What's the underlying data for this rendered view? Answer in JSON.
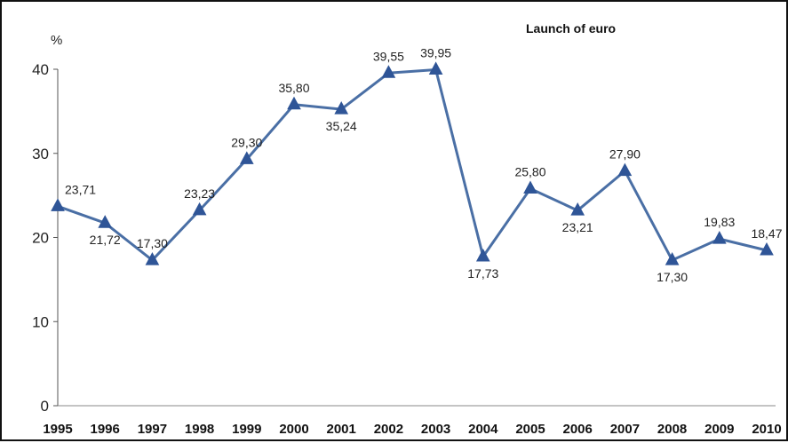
{
  "chart_data": {
    "type": "line",
    "title": "",
    "annotation": "Launch of euro",
    "unit_label": "%",
    "xlabel": "",
    "ylabel": "",
    "ylim": [
      0,
      40
    ],
    "yticks": [
      "0",
      "10",
      "20",
      "30",
      "40"
    ],
    "grid": false,
    "legend": "none",
    "line_color": "#4a6fa5",
    "marker_color": "#2f5597",
    "categories": [
      "1995",
      "1996",
      "1997",
      "1998",
      "1999",
      "2000",
      "2001",
      "2002",
      "2003",
      "2004",
      "2005",
      "2006",
      "2007",
      "2008",
      "2009",
      "2010"
    ],
    "series": [
      {
        "values": [
          23.71,
          21.72,
          17.3,
          23.23,
          29.3,
          35.8,
          35.24,
          39.55,
          39.95,
          17.73,
          25.8,
          23.21,
          27.9,
          17.3,
          19.83,
          18.47
        ],
        "labels": [
          "23,71",
          "21,72",
          "17,30",
          "23,23",
          "29,30",
          "35,80",
          "35,24",
          "39,55",
          "39,95",
          "17,73",
          "25,80",
          "23,21",
          "27,90",
          "17,30",
          "19,83",
          "18,47"
        ]
      }
    ]
  }
}
